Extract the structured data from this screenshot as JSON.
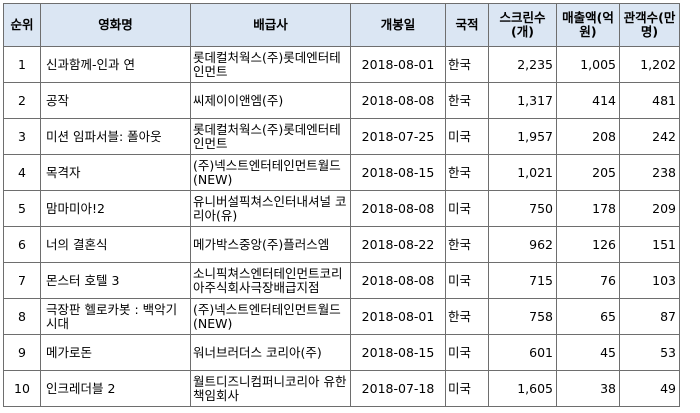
{
  "table": {
    "headers": {
      "rank": "순위",
      "title": "영화명",
      "distributor": "배급사",
      "release": "개봉일",
      "country": "국적",
      "screens": "스크린수(개)",
      "revenue": "매출액(억원)",
      "audience": "관객수(만명)"
    },
    "rows": [
      {
        "rank": "1",
        "title": "신과함께-인과 연",
        "distributor": "롯데컬처웍스(주)롯데엔터테인먼트",
        "release": "2018-08-01",
        "country": "한국",
        "screens": "2,235",
        "revenue": "1,005",
        "audience": "1,202"
      },
      {
        "rank": "2",
        "title": "공작",
        "distributor": "씨제이이앤엠(주)",
        "release": "2018-08-08",
        "country": "한국",
        "screens": "1,317",
        "revenue": "414",
        "audience": "481"
      },
      {
        "rank": "3",
        "title": "미션 임파서블: 폴아웃",
        "distributor": "롯데컬처웍스(주)롯데엔터테인먼트",
        "release": "2018-07-25",
        "country": "미국",
        "screens": "1,957",
        "revenue": "208",
        "audience": "242"
      },
      {
        "rank": "4",
        "title": "목격자",
        "distributor": "(주)넥스트엔터테인먼트월드(NEW)",
        "release": "2018-08-15",
        "country": "한국",
        "screens": "1,021",
        "revenue": "205",
        "audience": "238"
      },
      {
        "rank": "5",
        "title": "맘마미아!2",
        "distributor": "유니버설픽쳐스인터내셔널 코리아(유)",
        "release": "2018-08-08",
        "country": "미국",
        "screens": "750",
        "revenue": "178",
        "audience": "209"
      },
      {
        "rank": "6",
        "title": "너의 결혼식",
        "distributor": "메가박스중앙(주)플러스엠",
        "release": "2018-08-22",
        "country": "한국",
        "screens": "962",
        "revenue": "126",
        "audience": "151"
      },
      {
        "rank": "7",
        "title": "몬스터 호텔 3",
        "distributor": "소니픽쳐스엔터테인먼트코리아주식회사극장배급지점",
        "release": "2018-08-08",
        "country": "미국",
        "screens": "715",
        "revenue": "76",
        "audience": "103"
      },
      {
        "rank": "8",
        "title": "극장판 헬로카봇 : 백악기 시대",
        "distributor": "(주)넥스트엔터테인먼트월드(NEW)",
        "release": "2018-08-01",
        "country": "한국",
        "screens": "758",
        "revenue": "65",
        "audience": "87"
      },
      {
        "rank": "9",
        "title": "메가로돈",
        "distributor": "워너브러더스 코리아(주)",
        "release": "2018-08-15",
        "country": "미국",
        "screens": "601",
        "revenue": "45",
        "audience": "53"
      },
      {
        "rank": "10",
        "title": "인크레더블 2",
        "distributor": "월트디즈니컴퍼니코리아 유한책임회사",
        "release": "2018-07-18",
        "country": "미국",
        "screens": "1,605",
        "revenue": "38",
        "audience": "49"
      }
    ]
  }
}
